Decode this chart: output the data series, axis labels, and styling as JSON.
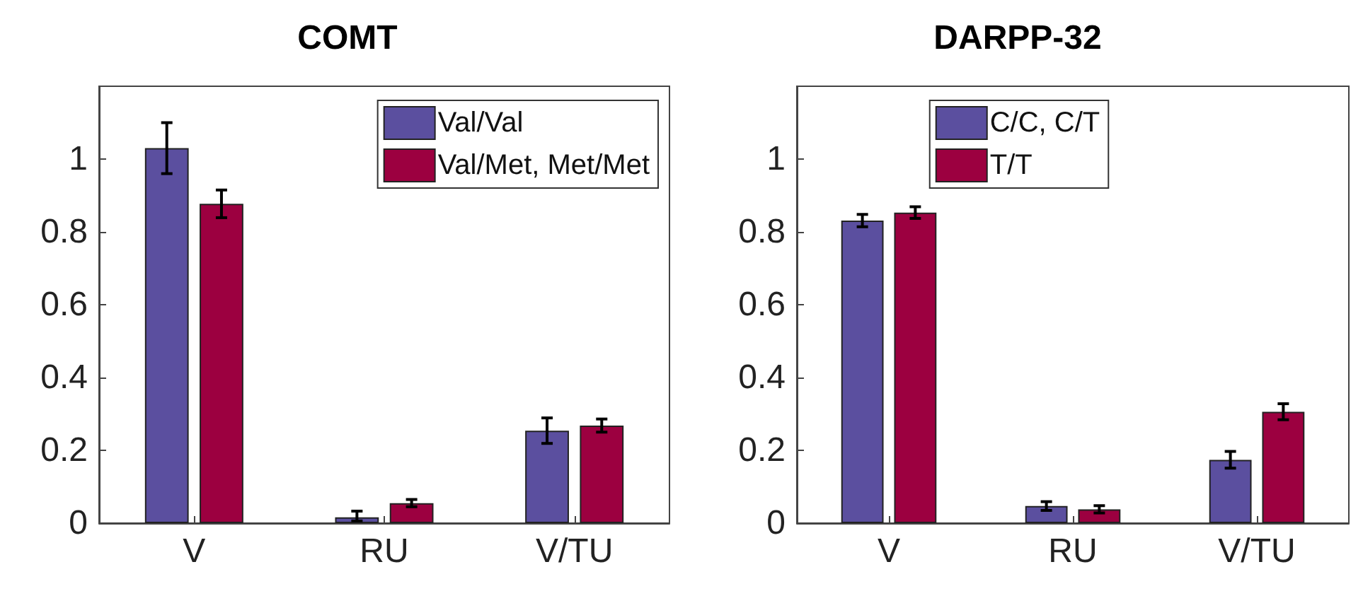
{
  "chart_data": [
    {
      "type": "bar",
      "title": "COMT",
      "categories": [
        "V",
        "RU",
        "V/TU"
      ],
      "series": [
        {
          "name": "Val/Val",
          "color": "#5b4f9f",
          "values": [
            1.03,
            0.016,
            0.254
          ],
          "errors": [
            0.07,
            [
              0.01,
              0.017
            ],
            0.035
          ]
        },
        {
          "name": "Val/Met, Met/Met",
          "color": "#9c0040",
          "values": [
            0.877,
            0.055,
            0.268
          ],
          "errors": [
            0.038,
            0.01,
            0.018
          ]
        }
      ],
      "ylim": [
        0,
        1.2
      ],
      "yticks": [
        0,
        0.2,
        0.4,
        0.6,
        0.8,
        1
      ],
      "grid": false,
      "legend": "top right"
    },
    {
      "type": "bar",
      "title": "DARPP-32",
      "categories": [
        "V",
        "RU",
        "V/TU"
      ],
      "series": [
        {
          "name": "C/C, C/T",
          "color": "#5b4f9f",
          "values": [
            0.831,
            0.047,
            0.174
          ],
          "errors": [
            0.017,
            0.012,
            0.023
          ]
        },
        {
          "name": "T/T",
          "color": "#9c0040",
          "values": [
            0.853,
            0.038,
            0.306
          ],
          "errors": [
            0.016,
            0.01,
            0.022
          ]
        }
      ],
      "ylim": [
        0,
        1.2
      ],
      "yticks": [
        0,
        0.2,
        0.4,
        0.6,
        0.8,
        1
      ],
      "grid": false,
      "legend": "top"
    }
  ]
}
